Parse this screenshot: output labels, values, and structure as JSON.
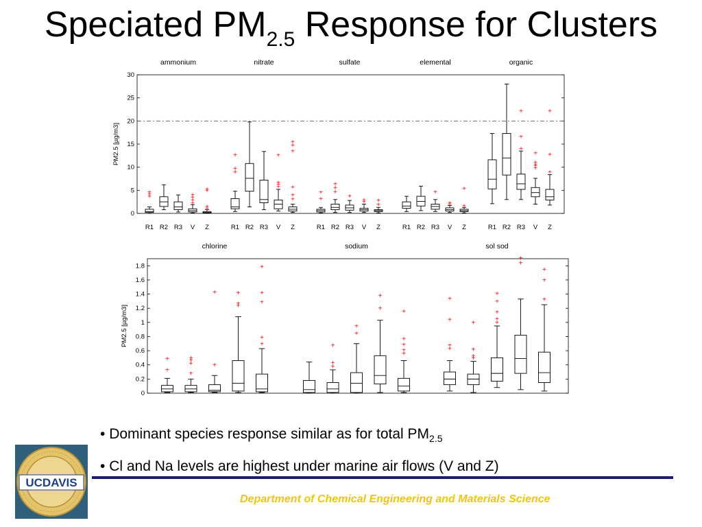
{
  "title": {
    "main": "Speciated PM",
    "sub": "2.5",
    "rest": " Response for Clusters"
  },
  "bullets": [
    {
      "text": "Dominant species response similar as for total PM",
      "sub": "2.5"
    },
    {
      "text": "Cl and Na levels are highest under marine air flows (V and Z)",
      "sub": ""
    }
  ],
  "footer": {
    "department": "Department of Chemical Engineering and Materials Science"
  },
  "logo": {
    "text": "UCDAVIS",
    "ring_text": "THE UNIVERSITY OF CALIFORNIA · DAVIS"
  },
  "colors": {
    "outlier": "#ff0000",
    "rule": "#1a1a80",
    "footer": "#f0c800",
    "refline": "#555555"
  },
  "chart_data": [
    {
      "type": "box",
      "ylabel": "PM2.5 [µg/m3]",
      "ylim": [
        0,
        30
      ],
      "yticks": [
        0,
        5,
        10,
        15,
        20,
        25,
        30
      ],
      "reference_line": 20,
      "grid": false,
      "groups": [
        {
          "name": "ammonium",
          "boxes": [
            {
              "label": "R1",
              "min": 0,
              "q1": 0.2,
              "median": 0.4,
              "q3": 0.9,
              "max": 1.4,
              "outliers": [
                3.7,
                4.2,
                4.6
              ]
            },
            {
              "label": "R2",
              "min": 0.8,
              "q1": 1.5,
              "median": 2.5,
              "q3": 3.6,
              "max": 6.2,
              "outliers": []
            },
            {
              "label": "R3",
              "min": 0.3,
              "q1": 0.8,
              "median": 1.4,
              "q3": 2.5,
              "max": 4.0,
              "outliers": []
            },
            {
              "label": "V",
              "min": 0.1,
              "q1": 0.3,
              "median": 0.6,
              "q3": 1.0,
              "max": 1.9,
              "outliers": [
                2.2,
                2.9,
                3.5,
                4.0
              ]
            },
            {
              "label": "Z",
              "min": 0,
              "q1": 0.1,
              "median": 0.2,
              "q3": 0.4,
              "max": 0.8,
              "outliers": [
                1.1,
                1.5,
                5.0,
                5.3
              ]
            }
          ]
        },
        {
          "name": "nitrate",
          "boxes": [
            {
              "label": "R1",
              "min": 0.4,
              "q1": 1.0,
              "median": 1.4,
              "q3": 3.2,
              "max": 4.8,
              "outliers": [
                9.0,
                9.7,
                12.7
              ]
            },
            {
              "label": "R2",
              "min": 1.4,
              "q1": 4.8,
              "median": 7.6,
              "q3": 10.8,
              "max": 19.8,
              "outliers": []
            },
            {
              "label": "R3",
              "min": 0.8,
              "q1": 2.3,
              "median": 3.0,
              "q3": 7.2,
              "max": 13.4,
              "outliers": []
            },
            {
              "label": "V",
              "min": 0.5,
              "q1": 1.0,
              "median": 2.0,
              "q3": 2.9,
              "max": 5.2,
              "outliers": [
                5.8,
                6.3,
                6.7,
                12.6
              ]
            },
            {
              "label": "Z",
              "min": 0.2,
              "q1": 0.5,
              "median": 0.9,
              "q3": 1.4,
              "max": 2.0,
              "outliers": [
                3.1,
                4.0,
                5.7,
                13.5,
                14.8,
                15.5
              ]
            }
          ]
        },
        {
          "name": "sulfate",
          "boxes": [
            {
              "label": "R1",
              "min": 0.1,
              "q1": 0.3,
              "median": 0.6,
              "q3": 0.9,
              "max": 1.3,
              "outliers": [
                3.2,
                4.6
              ]
            },
            {
              "label": "R2",
              "min": 0.2,
              "q1": 0.8,
              "median": 1.3,
              "q3": 2.0,
              "max": 3.0,
              "outliers": [
                4.7,
                5.6,
                6.4
              ]
            },
            {
              "label": "R3",
              "min": 0.2,
              "q1": 0.7,
              "median": 1.2,
              "q3": 1.8,
              "max": 2.8,
              "outliers": [
                3.8
              ]
            },
            {
              "label": "V",
              "min": 0.2,
              "q1": 0.5,
              "median": 0.8,
              "q3": 1.1,
              "max": 2.0,
              "outliers": [
                2.5,
                2.9
              ]
            },
            {
              "label": "Z",
              "min": 0.1,
              "q1": 0.4,
              "median": 0.6,
              "q3": 0.8,
              "max": 1.3,
              "outliers": [
                1.9,
                2.8
              ]
            }
          ]
        },
        {
          "name": "elemental",
          "boxes": [
            {
              "label": "R1",
              "min": 0.4,
              "q1": 1.1,
              "median": 1.6,
              "q3": 2.5,
              "max": 3.7,
              "outliers": []
            },
            {
              "label": "R2",
              "min": 0.6,
              "q1": 1.6,
              "median": 2.6,
              "q3": 3.7,
              "max": 5.9,
              "outliers": []
            },
            {
              "label": "R3",
              "min": 0.4,
              "q1": 0.9,
              "median": 1.5,
              "q3": 2.0,
              "max": 3.0,
              "outliers": [
                4.7
              ]
            },
            {
              "label": "V",
              "min": 0.2,
              "q1": 0.5,
              "median": 0.8,
              "q3": 1.2,
              "max": 1.7,
              "outliers": [
                2.0,
                2.3
              ]
            },
            {
              "label": "Z",
              "min": 0.1,
              "q1": 0.4,
              "median": 0.6,
              "q3": 0.9,
              "max": 1.3,
              "outliers": [
                1.6,
                5.4
              ]
            }
          ]
        },
        {
          "name": "organic",
          "boxes": [
            {
              "label": "R1",
              "min": 2.1,
              "q1": 5.3,
              "median": 7.4,
              "q3": 11.6,
              "max": 17.3,
              "outliers": []
            },
            {
              "label": "R2",
              "min": 3.0,
              "q1": 8.3,
              "median": 12.0,
              "q3": 17.3,
              "max": 28.0,
              "outliers": []
            },
            {
              "label": "R3",
              "min": 3.0,
              "q1": 5.2,
              "median": 6.4,
              "q3": 8.5,
              "max": 13.5,
              "outliers": [
                14.0,
                16.6,
                22.2
              ]
            },
            {
              "label": "V",
              "min": 2.0,
              "q1": 3.6,
              "median": 4.5,
              "q3": 5.6,
              "max": 7.6,
              "outliers": [
                9.9,
                10.3,
                10.6,
                11.1,
                13.1
              ]
            },
            {
              "label": "Z",
              "min": 1.8,
              "q1": 2.9,
              "median": 3.6,
              "q3": 5.2,
              "max": 8.4,
              "outliers": [
                9.0,
                12.8,
                22.2
              ]
            }
          ]
        }
      ]
    },
    {
      "type": "box",
      "ylabel": "PM2.5 [µg/m3]",
      "ylim": [
        0,
        1.9
      ],
      "yticks": [
        0,
        0.2,
        0.4,
        0.6,
        0.8,
        1,
        1.2,
        1.4,
        1.6,
        1.8
      ],
      "grid": false,
      "groups": [
        {
          "name": "chlorine",
          "boxes": [
            {
              "label": "R1",
              "min": 0.01,
              "q1": 0.02,
              "median": 0.06,
              "q3": 0.11,
              "max": 0.21,
              "outliers": [
                0.33,
                0.49
              ]
            },
            {
              "label": "R2",
              "min": 0.01,
              "q1": 0.02,
              "median": 0.06,
              "q3": 0.11,
              "max": 0.2,
              "outliers": [
                0.28,
                0.42,
                0.47,
                0.5
              ]
            },
            {
              "label": "R3",
              "min": 0.01,
              "q1": 0.02,
              "median": 0.04,
              "q3": 0.12,
              "max": 0.25,
              "outliers": [
                0.4,
                1.43
              ]
            },
            {
              "label": "V",
              "min": 0.01,
              "q1": 0.03,
              "median": 0.14,
              "q3": 0.46,
              "max": 1.08,
              "outliers": [
                1.24,
                1.27,
                1.42
              ]
            },
            {
              "label": "Z",
              "min": 0.01,
              "q1": 0.02,
              "median": 0.06,
              "q3": 0.27,
              "max": 0.63,
              "outliers": [
                0.7,
                0.79,
                1.29,
                1.42,
                1.79
              ]
            }
          ]
        },
        {
          "name": "sodium",
          "boxes": [
            {
              "label": "R1",
              "min": 0.0,
              "q1": 0.01,
              "median": 0.05,
              "q3": 0.18,
              "max": 0.44,
              "outliers": []
            },
            {
              "label": "R2",
              "min": 0.0,
              "q1": 0.01,
              "median": 0.06,
              "q3": 0.15,
              "max": 0.33,
              "outliers": [
                0.38,
                0.43,
                0.68
              ]
            },
            {
              "label": "R3",
              "min": 0.0,
              "q1": 0.01,
              "median": 0.14,
              "q3": 0.29,
              "max": 0.7,
              "outliers": [
                0.85,
                0.95
              ]
            },
            {
              "label": "V",
              "min": 0.01,
              "q1": 0.13,
              "median": 0.25,
              "q3": 0.53,
              "max": 1.03,
              "outliers": [
                1.2,
                1.38
              ]
            },
            {
              "label": "Z",
              "min": 0.01,
              "q1": 0.03,
              "median": 0.1,
              "q3": 0.21,
              "max": 0.46,
              "outliers": [
                0.56,
                0.61,
                0.69,
                0.77,
                1.16
              ]
            }
          ]
        },
        {
          "name": "sol sod",
          "boxes": [
            {
              "label": "R1",
              "min": 0.03,
              "q1": 0.12,
              "median": 0.2,
              "q3": 0.3,
              "max": 0.46,
              "outliers": [
                0.63,
                0.68,
                1.04,
                1.34
              ]
            },
            {
              "label": "R2",
              "min": 0.01,
              "q1": 0.12,
              "median": 0.2,
              "q3": 0.27,
              "max": 0.45,
              "outliers": [
                0.5,
                0.53,
                0.62,
                1.0
              ]
            },
            {
              "label": "R3",
              "min": 0.08,
              "q1": 0.17,
              "median": 0.28,
              "q3": 0.5,
              "max": 0.95,
              "outliers": [
                1.0,
                1.05,
                1.15,
                1.3,
                1.41
              ]
            },
            {
              "label": "V",
              "min": 0.05,
              "q1": 0.28,
              "median": 0.49,
              "q3": 0.82,
              "max": 1.33,
              "outliers": [
                1.84,
                1.91
              ]
            },
            {
              "label": "Z",
              "min": 0.03,
              "q1": 0.15,
              "median": 0.29,
              "q3": 0.58,
              "max": 1.25,
              "outliers": [
                1.33,
                1.6,
                1.75
              ]
            }
          ]
        }
      ]
    }
  ]
}
